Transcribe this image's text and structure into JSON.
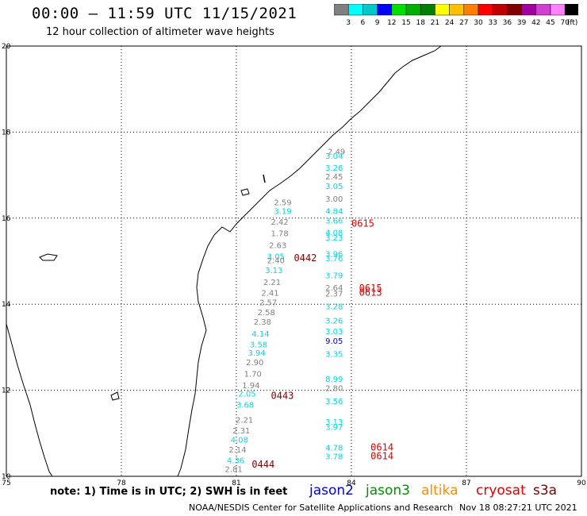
{
  "header": {
    "title": "00:00 – 11:59 UTC 11/15/2021",
    "subtitle": "12 hour collection of altimeter wave heights"
  },
  "legend": {
    "unit": "(ft)",
    "bins": [
      {
        "label": "3",
        "color": "#808080"
      },
      {
        "label": "6",
        "color": "#00ffff"
      },
      {
        "label": "9",
        "color": "#00c8c8"
      },
      {
        "label": "12",
        "color": "#0000ff"
      },
      {
        "label": "15",
        "color": "#00e000"
      },
      {
        "label": "18",
        "color": "#00b000"
      },
      {
        "label": "21",
        "color": "#008000"
      },
      {
        "label": "24",
        "color": "#ffff00"
      },
      {
        "label": "27",
        "color": "#ffc000"
      },
      {
        "label": "30",
        "color": "#ff8000"
      },
      {
        "label": "33",
        "color": "#ff0000"
      },
      {
        "label": "36",
        "color": "#c00000"
      },
      {
        "label": "39",
        "color": "#800000"
      },
      {
        "label": "42",
        "color": "#a000a0"
      },
      {
        "label": "45",
        "color": "#d040d0"
      },
      {
        "label": "70",
        "color": "#ff80ff"
      },
      {
        "label": "",
        "color": "#000000"
      }
    ]
  },
  "map": {
    "lon_ticks": [
      "75",
      "78",
      "81",
      "84",
      "87",
      "90"
    ],
    "lat_ticks": [
      "10",
      "12",
      "14",
      "16",
      "18",
      "20"
    ],
    "lon_range": [
      75,
      90
    ],
    "lat_range": [
      10,
      20
    ],
    "grid": true
  },
  "track_labels": [
    {
      "text": "0442",
      "lon": 82.5,
      "lat": 15.0,
      "color": "#800000"
    },
    {
      "text": "0443",
      "lon": 81.9,
      "lat": 11.8,
      "color": "#800000"
    },
    {
      "text": "0444",
      "lon": 81.4,
      "lat": 10.2,
      "color": "#800000"
    },
    {
      "text": "0615",
      "lon": 84.0,
      "lat": 15.8,
      "color": "#e00000"
    },
    {
      "text": "0615",
      "lon": 84.2,
      "lat": 14.3,
      "color": "#e00000"
    },
    {
      "text": "0613",
      "lon": 84.2,
      "lat": 14.2,
      "color": "#e00000"
    },
    {
      "text": "0614",
      "lon": 84.5,
      "lat": 10.6,
      "color": "#e00000"
    },
    {
      "text": "0614",
      "lon": 84.5,
      "lat": 10.4,
      "color": "#e00000"
    }
  ],
  "observations": [
    {
      "v": "2.49",
      "lon": 83.38,
      "lat": 17.48,
      "c": "#808080"
    },
    {
      "v": "3.04",
      "lon": 83.32,
      "lat": 17.38,
      "c": "#00d8e0"
    },
    {
      "v": "3.26",
      "lon": 83.32,
      "lat": 17.1,
      "c": "#00d8e0"
    },
    {
      "v": "2.45",
      "lon": 83.32,
      "lat": 16.9,
      "c": "#808080"
    },
    {
      "v": "3.05",
      "lon": 83.32,
      "lat": 16.68,
      "c": "#00d8e0"
    },
    {
      "v": "3.00",
      "lon": 83.32,
      "lat": 16.38,
      "c": "#808080"
    },
    {
      "v": "4.84",
      "lon": 83.32,
      "lat": 16.1,
      "c": "#00d8e0"
    },
    {
      "v": "3.66",
      "lon": 83.32,
      "lat": 15.88,
      "c": "#00d8e0"
    },
    {
      "v": "4.08",
      "lon": 83.32,
      "lat": 15.6,
      "c": "#00d8e0"
    },
    {
      "v": "3.23",
      "lon": 83.32,
      "lat": 15.48,
      "c": "#00d8e0"
    },
    {
      "v": "3.96",
      "lon": 83.32,
      "lat": 15.1,
      "c": "#00d8e0"
    },
    {
      "v": "3.76",
      "lon": 83.32,
      "lat": 15.0,
      "c": "#00d8e0"
    },
    {
      "v": "3.79",
      "lon": 83.32,
      "lat": 14.6,
      "c": "#00d8e0"
    },
    {
      "v": "2.64",
      "lon": 83.32,
      "lat": 14.32,
      "c": "#808080"
    },
    {
      "v": "2.37",
      "lon": 83.32,
      "lat": 14.18,
      "c": "#808080"
    },
    {
      "v": "3.28",
      "lon": 83.32,
      "lat": 13.88,
      "c": "#00d8e0"
    },
    {
      "v": "3.26",
      "lon": 83.32,
      "lat": 13.55,
      "c": "#00d8e0"
    },
    {
      "v": "3.03",
      "lon": 83.32,
      "lat": 13.3,
      "c": "#00d8e0"
    },
    {
      "v": "9.05",
      "lon": 83.32,
      "lat": 13.08,
      "c": "#0000c8"
    },
    {
      "v": "3.35",
      "lon": 83.32,
      "lat": 12.78,
      "c": "#00d8e0"
    },
    {
      "v": "8.99",
      "lon": 83.32,
      "lat": 12.2,
      "c": "#00d8e0"
    },
    {
      "v": "2.80",
      "lon": 83.32,
      "lat": 11.98,
      "c": "#808080"
    },
    {
      "v": "3.56",
      "lon": 83.32,
      "lat": 11.68,
      "c": "#00d8e0"
    },
    {
      "v": "3.13",
      "lon": 83.32,
      "lat": 11.2,
      "c": "#00d8e0"
    },
    {
      "v": "3.97",
      "lon": 83.32,
      "lat": 11.08,
      "c": "#00d8e0"
    },
    {
      "v": "4.78",
      "lon": 83.32,
      "lat": 10.6,
      "c": "#00d8e0"
    },
    {
      "v": "3.78",
      "lon": 83.32,
      "lat": 10.4,
      "c": "#00d8e0"
    },
    {
      "v": "2.59",
      "lon": 81.98,
      "lat": 16.3,
      "c": "#808080"
    },
    {
      "v": "3.19",
      "lon": 81.98,
      "lat": 16.1,
      "c": "#00d8e0"
    },
    {
      "v": "2.42",
      "lon": 81.9,
      "lat": 15.85,
      "c": "#808080"
    },
    {
      "v": "1.78",
      "lon": 81.9,
      "lat": 15.58,
      "c": "#808080"
    },
    {
      "v": "2.63",
      "lon": 81.85,
      "lat": 15.3,
      "c": "#808080"
    },
    {
      "v": "3.05",
      "lon": 81.8,
      "lat": 15.05,
      "c": "#00d8e0"
    },
    {
      "v": "2.40",
      "lon": 81.8,
      "lat": 14.95,
      "c": "#808080"
    },
    {
      "v": "3.13",
      "lon": 81.75,
      "lat": 14.72,
      "c": "#00d8e0"
    },
    {
      "v": "2.21",
      "lon": 81.7,
      "lat": 14.45,
      "c": "#808080"
    },
    {
      "v": "2.41",
      "lon": 81.65,
      "lat": 14.2,
      "c": "#808080"
    },
    {
      "v": "2.57",
      "lon": 81.6,
      "lat": 13.98,
      "c": "#808080"
    },
    {
      "v": "2.58",
      "lon": 81.55,
      "lat": 13.75,
      "c": "#808080"
    },
    {
      "v": "2.38",
      "lon": 81.45,
      "lat": 13.52,
      "c": "#808080"
    },
    {
      "v": "4.14",
      "lon": 81.4,
      "lat": 13.25,
      "c": "#00d8e0"
    },
    {
      "v": "3.58",
      "lon": 81.35,
      "lat": 13.0,
      "c": "#00d8e0"
    },
    {
      "v": "3.94",
      "lon": 81.3,
      "lat": 12.8,
      "c": "#00d8e0"
    },
    {
      "v": "2.90",
      "lon": 81.25,
      "lat": 12.58,
      "c": "#808080"
    },
    {
      "v": "1.70",
      "lon": 81.2,
      "lat": 12.32,
      "c": "#808080"
    },
    {
      "v": "1.94",
      "lon": 81.15,
      "lat": 12.05,
      "c": "#808080"
    },
    {
      "v": "2.05",
      "lon": 81.05,
      "lat": 11.85,
      "c": "#00d8e0"
    },
    {
      "v": "3.68",
      "lon": 81.0,
      "lat": 11.6,
      "c": "#00d8e0"
    },
    {
      "v": "2.21",
      "lon": 80.98,
      "lat": 11.25,
      "c": "#808080"
    },
    {
      "v": "2.31",
      "lon": 80.9,
      "lat": 11.0,
      "c": "#808080"
    },
    {
      "v": "4.08",
      "lon": 80.85,
      "lat": 10.78,
      "c": "#00d8e0"
    },
    {
      "v": "2.14",
      "lon": 80.8,
      "lat": 10.55,
      "c": "#808080"
    },
    {
      "v": "4.36",
      "lon": 80.75,
      "lat": 10.3,
      "c": "#00d8e0"
    },
    {
      "v": "2.81",
      "lon": 80.7,
      "lat": 10.1,
      "c": "#808080"
    }
  ],
  "footer": {
    "note": "note:  1) Time is in UTC;  2) SWH is in feet",
    "satellites": [
      {
        "name": "jason2",
        "color": "#0000cc"
      },
      {
        "name": "jason3",
        "color": "#009000"
      },
      {
        "name": "altika",
        "color": "#ff8c00"
      },
      {
        "name": "cryosat",
        "color": "#e00000"
      },
      {
        "name": "s3a",
        "color": "#800000"
      }
    ],
    "credit": "NOAA/NESDIS Center for Satellite Applications and Research",
    "generated": "Nov 18 08:27:21 UTC 2021"
  }
}
